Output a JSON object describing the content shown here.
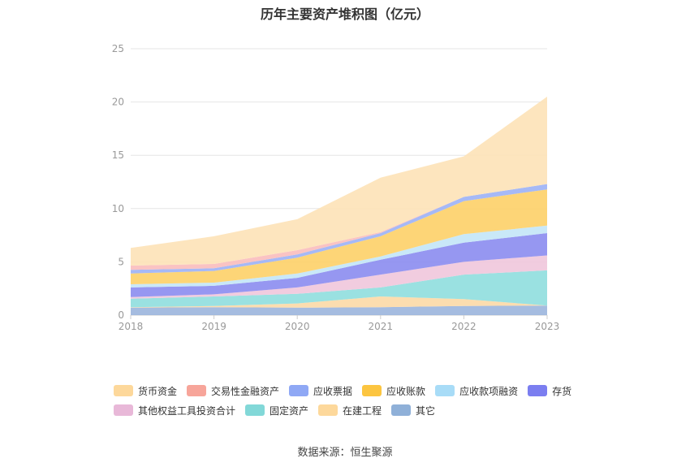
{
  "chart_data": {
    "type": "area",
    "title": "历年主要资产堆积图（亿元）",
    "xlabel": "",
    "ylabel": "",
    "x": [
      "2018",
      "2019",
      "2020",
      "2021",
      "2022",
      "2023"
    ],
    "ylim": [
      0,
      25
    ],
    "yticks": [
      "0",
      "5",
      "10",
      "15",
      "20",
      "25"
    ],
    "grid": true,
    "legend_position": "bottom",
    "series": [
      {
        "name": "其它",
        "color": "#9bb5dd",
        "values": [
          0.7,
          0.75,
          0.7,
          0.75,
          0.85,
          0.9
        ]
      },
      {
        "name": "在建工程",
        "color": "#fcd9a6",
        "values": [
          0.05,
          0.1,
          0.4,
          1.0,
          0.65,
          0.0
        ]
      },
      {
        "name": "固定资产",
        "color": "#8fdede",
        "values": [
          0.8,
          0.9,
          0.9,
          0.85,
          2.3,
          3.3
        ]
      },
      {
        "name": "其他权益工具投资合计",
        "color": "#f0c6dc",
        "values": [
          0.15,
          0.2,
          0.6,
          1.2,
          1.2,
          1.4
        ]
      },
      {
        "name": "存货",
        "color": "#8b8cf0",
        "values": [
          0.9,
          0.8,
          0.9,
          1.4,
          1.8,
          2.1
        ]
      },
      {
        "name": "应收款项融资",
        "color": "#c3e6f7",
        "values": [
          0.3,
          0.3,
          0.4,
          0.3,
          0.8,
          0.7
        ]
      },
      {
        "name": "应收账款",
        "color": "#fdd068",
        "values": [
          1.0,
          1.1,
          1.5,
          1.9,
          3.1,
          3.4
        ]
      },
      {
        "name": "应收票据",
        "color": "#9cb1f5",
        "values": [
          0.35,
          0.25,
          0.3,
          0.3,
          0.4,
          0.5
        ]
      },
      {
        "name": "交易性金融资产",
        "color": "#f9bcbc",
        "values": [
          0.4,
          0.4,
          0.4,
          0.1,
          0.0,
          0.0
        ]
      },
      {
        "name": "货币资金",
        "color": "#fde2b7",
        "values": [
          1.65,
          2.6,
          2.9,
          5.1,
          3.8,
          8.2
        ]
      }
    ]
  },
  "legend": [
    {
      "label": "货币资金",
      "color": "#fdd89b"
    },
    {
      "label": "交易性金融资产",
      "color": "#f7a59a"
    },
    {
      "label": "应收票据",
      "color": "#8fa8f5"
    },
    {
      "label": "应收账款",
      "color": "#fcc540"
    },
    {
      "label": "应收款项融资",
      "color": "#a8dcf7"
    },
    {
      "label": "存货",
      "color": "#7b7ef0"
    },
    {
      "label": "其他权益工具投资合计",
      "color": "#e8b8d8"
    },
    {
      "label": "固定资产",
      "color": "#82d8d8"
    },
    {
      "label": "在建工程",
      "color": "#fdd89b"
    },
    {
      "label": "其它",
      "color": "#8fb0d8"
    }
  ],
  "source": "数据来源：恒生聚源"
}
